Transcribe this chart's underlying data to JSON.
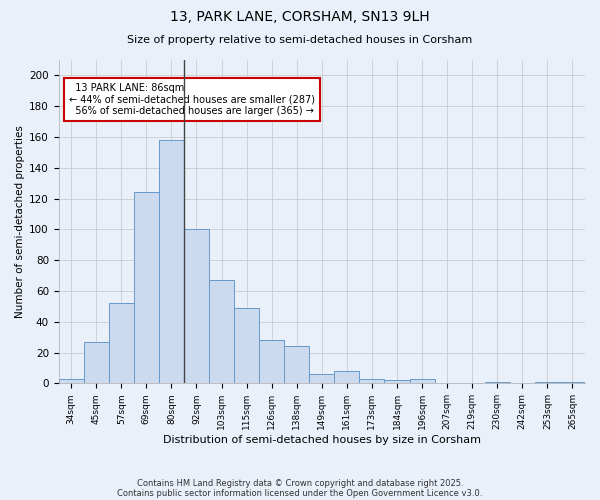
{
  "title1": "13, PARK LANE, CORSHAM, SN13 9LH",
  "title2": "Size of property relative to semi-detached houses in Corsham",
  "xlabel": "Distribution of semi-detached houses by size in Corsham",
  "ylabel": "Number of semi-detached properties",
  "categories": [
    "34sqm",
    "45sqm",
    "57sqm",
    "69sqm",
    "80sqm",
    "92sqm",
    "103sqm",
    "115sqm",
    "126sqm",
    "138sqm",
    "149sqm",
    "161sqm",
    "173sqm",
    "184sqm",
    "196sqm",
    "207sqm",
    "219sqm",
    "230sqm",
    "242sqm",
    "253sqm",
    "265sqm"
  ],
  "values": [
    3,
    27,
    52,
    124,
    158,
    100,
    67,
    49,
    28,
    24,
    6,
    8,
    3,
    2,
    3,
    0,
    0,
    1,
    0,
    1,
    1
  ],
  "bar_color": "#ccdaf0",
  "bar_edge_color": "#6699cc",
  "property_label": "13 PARK LANE: 86sqm",
  "smaller_pct": "44% of semi-detached houses are smaller (287)",
  "larger_pct": "56% of semi-detached houses are larger (365)",
  "annotation_box_color": "#ffffff",
  "annotation_border_color": "#cc0000",
  "vline_color": "#444444",
  "ylim": [
    0,
    210
  ],
  "yticks": [
    0,
    20,
    40,
    60,
    80,
    100,
    120,
    140,
    160,
    180,
    200
  ],
  "grid_color": "#cccccc",
  "bg_color": "#eaf0fa",
  "footer1": "Contains HM Land Registry data © Crown copyright and database right 2025.",
  "footer2": "Contains public sector information licensed under the Open Government Licence v3.0."
}
